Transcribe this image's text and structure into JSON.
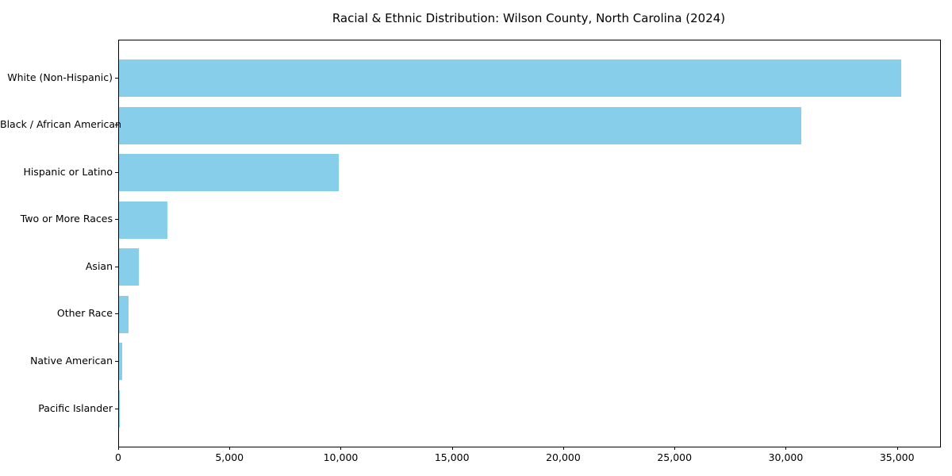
{
  "title": "Racial & Ethnic Distribution: Wilson County, North Carolina (2024)",
  "chart_data": {
    "type": "bar",
    "orientation": "horizontal",
    "title": "Racial & Ethnic Distribution: Wilson County, North Carolina (2024)",
    "categories": [
      "White (Non-Hispanic)",
      "Black / African American",
      "Hispanic or Latino",
      "Two or More Races",
      "Asian",
      "Other Race",
      "Native American",
      "Pacific Islander"
    ],
    "values": [
      35150,
      30650,
      9860,
      2180,
      900,
      420,
      150,
      30
    ],
    "xlabel": "",
    "ylabel": "",
    "xlim": [
      0,
      36900
    ],
    "xticks": [
      0,
      5000,
      10000,
      15000,
      20000,
      25000,
      30000,
      35000
    ],
    "xtick_labels": [
      "0",
      "5,000",
      "10,000",
      "15,000",
      "20,000",
      "25,000",
      "30,000",
      "35,000"
    ],
    "bar_color": "#87CEEB",
    "axis_color": "#000000",
    "text_color": "#000000",
    "background": "#FFFFFF",
    "grid": false,
    "legend": "none"
  }
}
